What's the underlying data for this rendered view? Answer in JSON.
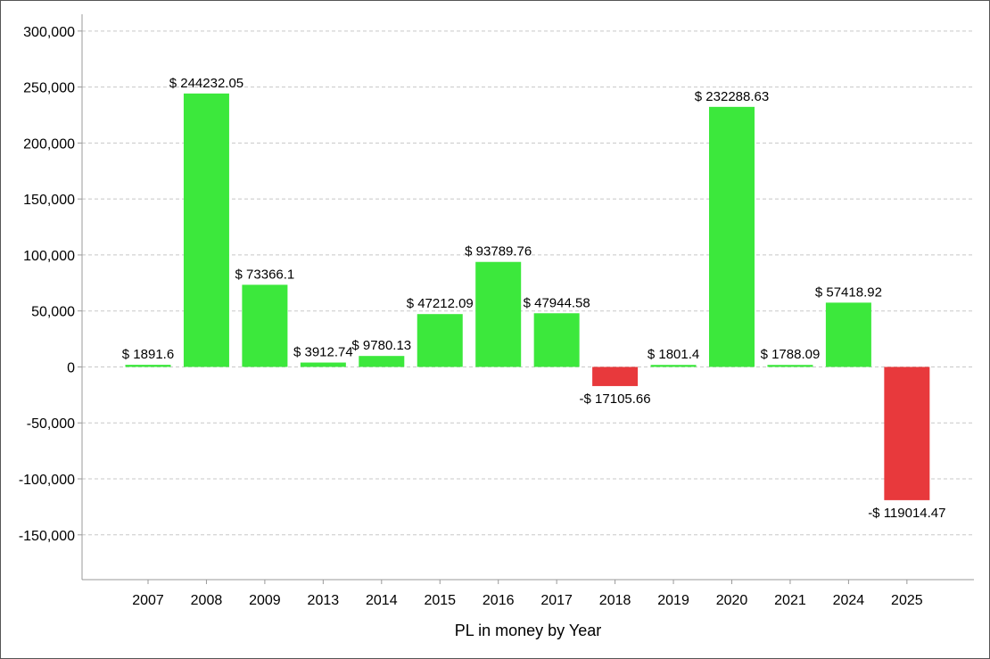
{
  "chart_data": {
    "type": "bar",
    "title": "",
    "xlabel": "PL in money by Year",
    "ylabel": "",
    "ylim": [
      -190000,
      315000
    ],
    "yticks": [
      300000,
      250000,
      200000,
      150000,
      100000,
      50000,
      0,
      -50000,
      -100000,
      -150000
    ],
    "ytick_labels": [
      "300,000",
      "250,000",
      "200,000",
      "150,000",
      "100,000",
      "50,000",
      "0",
      "-50,000",
      "-100,000",
      "-150,000"
    ],
    "grid": true,
    "legend": "none",
    "categories": [
      "2007",
      "2008",
      "2009",
      "2013",
      "2014",
      "2015",
      "2016",
      "2017",
      "2018",
      "2019",
      "2020",
      "2021",
      "2024",
      "2025"
    ],
    "values": [
      1891.6,
      244232.05,
      73366.1,
      3912.74,
      9780.13,
      47212.09,
      93789.76,
      47944.58,
      -17105.66,
      1801.4,
      232288.63,
      1788.09,
      57418.92,
      -119014.47
    ],
    "data_labels": [
      "$ 1891.6",
      "$ 244232.05",
      "$ 73366.1",
      "$ 3912.74",
      "$ 9780.13",
      "$ 47212.09",
      "$ 93789.76",
      "$ 47944.58",
      "-$ 17105.66",
      "$ 1801.4",
      "$ 232288.63",
      "$ 1788.09",
      "$ 57418.92",
      "-$ 119014.47"
    ],
    "colors": {
      "positive": "#3ce83c",
      "negative": "#e8393c",
      "grid": "#c8c8c8",
      "axis": "#999999"
    }
  }
}
